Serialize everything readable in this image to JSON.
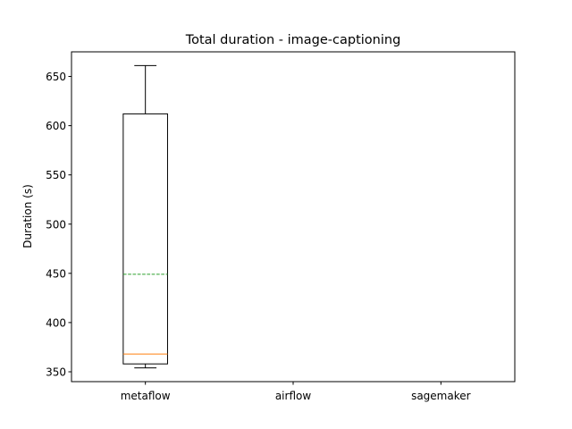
{
  "chart_data": {
    "type": "box",
    "title": "Total duration - image-captioning",
    "xlabel": "",
    "ylabel": "Duration (s)",
    "ylim": [
      340,
      675
    ],
    "yticks": [
      350,
      400,
      450,
      500,
      550,
      600,
      650
    ],
    "categories": [
      "metaflow",
      "airflow",
      "sagemaker"
    ],
    "boxes": [
      {
        "category": "metaflow",
        "whisker_low": 354,
        "q1": 358,
        "median": 368,
        "mean": 449,
        "q3": 612,
        "whisker_high": 661
      },
      {
        "category": "airflow"
      },
      {
        "category": "sagemaker"
      }
    ],
    "grid": false,
    "colors": {
      "box": "#000000",
      "median": "#ff7f0e",
      "mean": "#2ca02c"
    }
  }
}
